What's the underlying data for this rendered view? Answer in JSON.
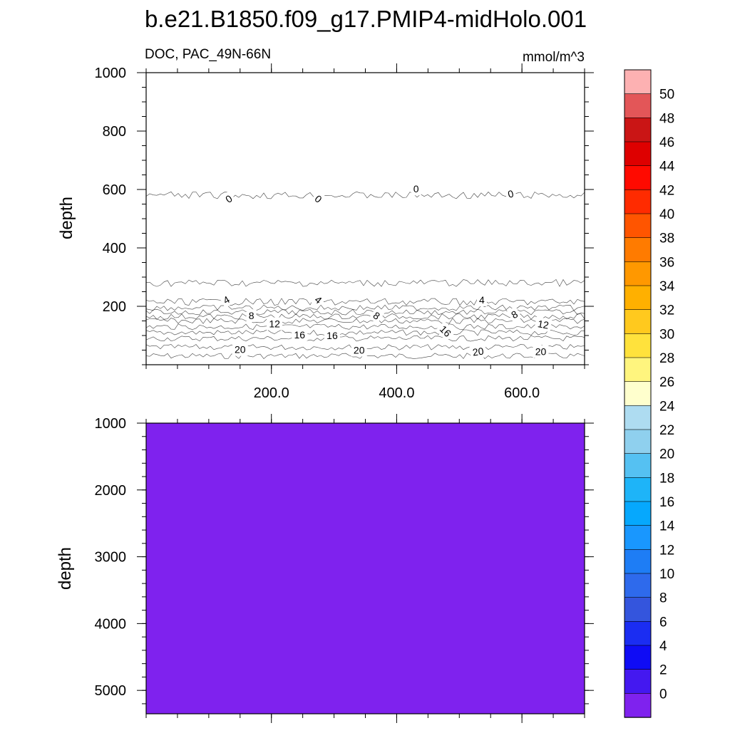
{
  "chart_data": {
    "type": "contour",
    "title": "b.e21.B1850.f09_g17.PMIP4-midHolo.001",
    "left_string": "DOC, PAC_49N-66N",
    "right_string": "mmol/m^3",
    "x_ticks": [
      "200.0",
      "400.0",
      "600.0"
    ],
    "xlim": [
      0,
      700
    ],
    "panels": [
      {
        "ylabel": "depth",
        "ylim": [
          1000,
          0
        ],
        "y_ticks": [
          "200",
          "400",
          "600",
          "800",
          "1000"
        ],
        "bands": [
          {
            "from_depth": 0,
            "to_depth": 30,
            "color": "#AEDCF1"
          },
          {
            "from_depth": 30,
            "to_depth": 60,
            "color": "#8FD0EE"
          },
          {
            "from_depth": 60,
            "to_depth": 90,
            "color": "#55C1F2"
          },
          {
            "from_depth": 90,
            "to_depth": 110,
            "color": "#1EB4F8"
          },
          {
            "from_depth": 110,
            "to_depth": 130,
            "color": "#06A8FD"
          },
          {
            "from_depth": 130,
            "to_depth": 150,
            "color": "#1997FE"
          },
          {
            "from_depth": 150,
            "to_depth": 165,
            "color": "#1E7DF5"
          },
          {
            "from_depth": 165,
            "to_depth": 180,
            "color": "#2E6AEC"
          },
          {
            "from_depth": 180,
            "to_depth": 195,
            "color": "#3455DD"
          },
          {
            "from_depth": 195,
            "to_depth": 215,
            "color": "#1B2DF2"
          },
          {
            "from_depth": 215,
            "to_depth": 280,
            "color": "#0F0CF5"
          },
          {
            "from_depth": 280,
            "to_depth": 580,
            "color": "#4418F0"
          },
          {
            "from_depth": 580,
            "to_depth": 1000,
            "color": "#7F22EE"
          }
        ],
        "contour_labels": [
          {
            "text": "20",
            "x": 150,
            "depth": 52,
            "angle": 0
          },
          {
            "text": "20",
            "x": 340,
            "depth": 50,
            "angle": 0
          },
          {
            "text": "20",
            "x": 530,
            "depth": 45,
            "angle": -8
          },
          {
            "text": "20",
            "x": 630,
            "depth": 45,
            "angle": 0
          },
          {
            "text": "16",
            "x": 245,
            "depth": 103,
            "angle": 0
          },
          {
            "text": "16",
            "x": 297,
            "depth": 100,
            "angle": 0
          },
          {
            "text": "16",
            "x": 478,
            "depth": 115,
            "angle": 45
          },
          {
            "text": "12",
            "x": 205,
            "depth": 140,
            "angle": 0
          },
          {
            "text": "12",
            "x": 634,
            "depth": 138,
            "angle": 10
          },
          {
            "text": "8",
            "x": 168,
            "depth": 168,
            "angle": 0
          },
          {
            "text": "8",
            "x": 368,
            "depth": 168,
            "angle": 35
          },
          {
            "text": "8",
            "x": 588,
            "depth": 172,
            "angle": -30
          },
          {
            "text": "4",
            "x": 128,
            "depth": 222,
            "angle": -30
          },
          {
            "text": "4",
            "x": 275,
            "depth": 222,
            "angle": 40
          },
          {
            "text": "4",
            "x": 536,
            "depth": 222,
            "angle": 0
          },
          {
            "text": "0",
            "x": 132,
            "depth": 568,
            "angle": -35
          },
          {
            "text": "0",
            "x": 275,
            "depth": 568,
            "angle": 40
          },
          {
            "text": "0",
            "x": 431,
            "depth": 602,
            "angle": 0
          },
          {
            "text": "0",
            "x": 582,
            "depth": 585,
            "angle": -15
          }
        ]
      },
      {
        "ylabel": "depth",
        "ylim": [
          1000,
          5350
        ],
        "y_ticks": [
          "1000",
          "2000",
          "3000",
          "4000",
          "5000"
        ],
        "bands": [
          {
            "from_depth": 1000,
            "to_depth": 5350,
            "color": "#7F22EE"
          }
        ],
        "contour_labels": []
      }
    ],
    "colorbar": {
      "labels": [
        "50",
        "48",
        "46",
        "44",
        "42",
        "40",
        "38",
        "36",
        "34",
        "32",
        "30",
        "28",
        "26",
        "24",
        "22",
        "20",
        "18",
        "16",
        "14",
        "12",
        "10",
        "8",
        "6",
        "4",
        "2",
        "0"
      ],
      "colors": [
        "#FDB1B2",
        "#E35658",
        "#CA1515",
        "#DE0000",
        "#FF0A00",
        "#FF2B00",
        "#FF5500",
        "#FF7B00",
        "#FF9800",
        "#FFB000",
        "#FFC91E",
        "#FFE23C",
        "#FFF57E",
        "#FFFFCD",
        "#AEDCF1",
        "#8FD0EE",
        "#55C1F2",
        "#1EB4F8",
        "#06A8FD",
        "#1997FE",
        "#1E7DF5",
        "#2E6AEC",
        "#3455DD",
        "#1B2DF2",
        "#0F0CF5",
        "#4418F0",
        "#7F22EE"
      ]
    }
  }
}
